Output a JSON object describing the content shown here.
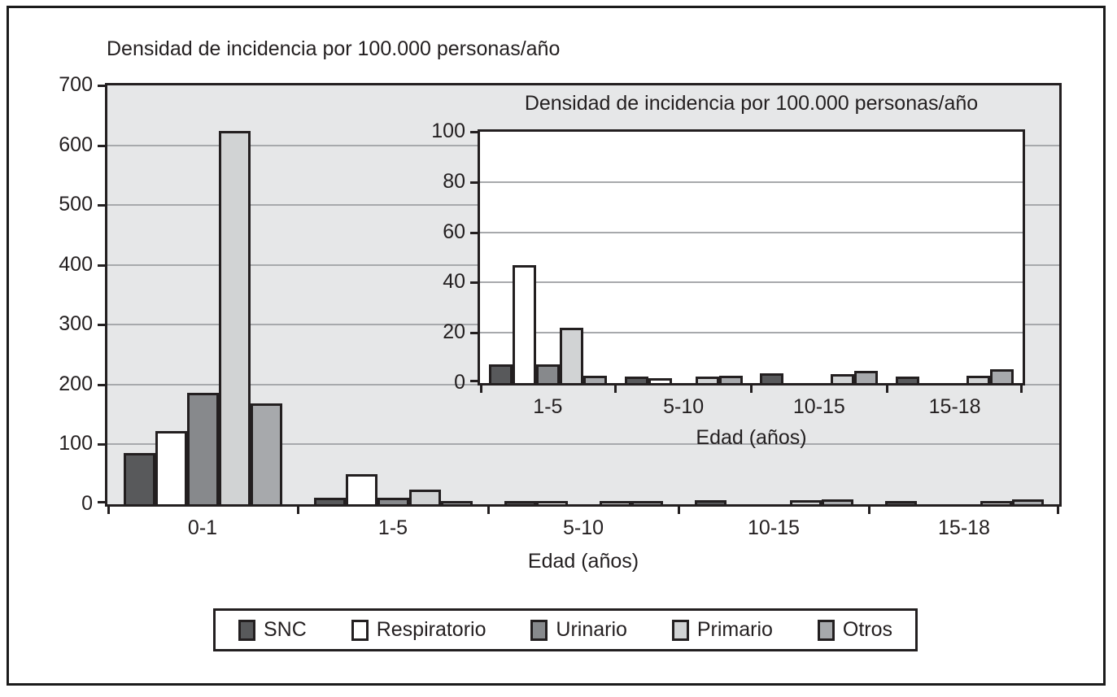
{
  "chart_data": [
    {
      "type": "bar",
      "role": "main",
      "title": "Densidad de incidencia por 100.000 personas/año",
      "xlabel": "Edad (años)",
      "ylabel": "",
      "categories": [
        "0-1",
        "1-5",
        "5-10",
        "10-15",
        "15-18"
      ],
      "series": [
        {
          "name": "SNC",
          "color": "#58595B",
          "values": [
            82,
            6.5,
            1.5,
            3,
            1.5
          ]
        },
        {
          "name": "Respiratorio",
          "color": "#FFFFFF",
          "values": [
            118,
            46,
            1,
            0,
            0
          ]
        },
        {
          "name": "Urinario",
          "color": "#87898C",
          "values": [
            182,
            6.5,
            0,
            0,
            0
          ]
        },
        {
          "name": "Primario",
          "color": "#D1D3D4",
          "values": [
            620,
            21,
            1.5,
            2.5,
            2
          ]
        },
        {
          "name": "Otros",
          "color": "#A7A9AC",
          "values": [
            165,
            2,
            2,
            4,
            4.5
          ]
        }
      ],
      "ylim": [
        0,
        700
      ],
      "yticks": [
        0,
        100,
        200,
        300,
        400,
        500,
        600,
        700
      ],
      "grid": true,
      "plot_background": "#E6E7E8",
      "legend_position": "bottom"
    },
    {
      "type": "bar",
      "role": "inset",
      "title": "Densidad de incidencia por 100.000 personas/año",
      "xlabel": "Edad (años)",
      "ylabel": "",
      "categories": [
        "1-5",
        "5-10",
        "10-15",
        "15-18"
      ],
      "series": [
        {
          "name": "SNC",
          "color": "#58595B",
          "values": [
            6.5,
            1.5,
            3,
            1.5
          ]
        },
        {
          "name": "Respiratorio",
          "color": "#FFFFFF",
          "values": [
            46,
            1,
            0,
            0
          ]
        },
        {
          "name": "Urinario",
          "color": "#87898C",
          "values": [
            6.5,
            0,
            0,
            0
          ]
        },
        {
          "name": "Primario",
          "color": "#D1D3D4",
          "values": [
            21,
            1.5,
            2.5,
            2
          ]
        },
        {
          "name": "Otros",
          "color": "#A7A9AC",
          "values": [
            2,
            2,
            4,
            4.5
          ]
        }
      ],
      "ylim": [
        0,
        100
      ],
      "yticks": [
        0,
        20,
        40,
        60,
        80,
        100
      ],
      "grid": true,
      "plot_background": "#FFFFFF",
      "legend_position": "none"
    }
  ],
  "legend": {
    "items": [
      "SNC",
      "Respiratorio",
      "Urinario",
      "Primario",
      "Otros"
    ]
  },
  "colors": {
    "text": "#231F20",
    "axis": "#231F20",
    "gridline": "#A7A9AC",
    "frame": "#1B1B1B"
  }
}
